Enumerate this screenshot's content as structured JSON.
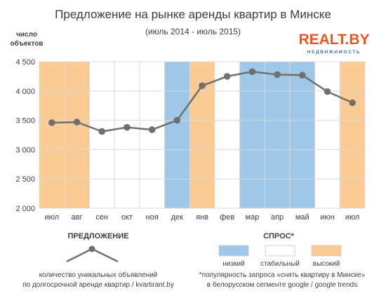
{
  "chart_data": {
    "type": "line",
    "title": "Предложение на рынке аренды квартир в Минске",
    "subtitle": "(июль 2014 - июль 2015)",
    "ylabel": "число объектов",
    "xlabel": "",
    "categories": [
      "июл",
      "авг",
      "сен",
      "окт",
      "ноя",
      "дек",
      "янв",
      "фев",
      "мар",
      "апр",
      "май",
      "июн",
      "июл"
    ],
    "ylim": [
      2000,
      4500
    ],
    "yticks": [
      2000,
      2500,
      3000,
      3500,
      4000,
      4500
    ],
    "ytick_labels": [
      "2 000",
      "2 500",
      "3 000",
      "3 500",
      "4 000",
      "4 500"
    ],
    "grid": true,
    "series": [
      {
        "name": "ПРЕДЛОЖЕНИЕ",
        "color": "#707070",
        "values": [
          3460,
          3470,
          3310,
          3380,
          3340,
          3500,
          4090,
          4250,
          4330,
          4280,
          4270,
          3990,
          3800
        ]
      }
    ],
    "demand_bands": [
      "high",
      "high",
      "low_demand_none",
      "none",
      "none",
      "low",
      "high",
      "none",
      "low",
      "low",
      "low",
      "none",
      "high"
    ],
    "band_colors": {
      "low": "#9ec7e8",
      "medium": "#ffffff",
      "high": "#fbcb95"
    },
    "legend": {
      "supply": {
        "heading": "ПРЕДЛОЖЕНИЕ",
        "note_line1": "количество уникальных объявлений",
        "note_line2": "по долгосрочной аренде квартир / kvartirant.by"
      },
      "demand": {
        "heading": "СПРОС*",
        "items": [
          {
            "key": "low",
            "label": "низкий"
          },
          {
            "key": "medium",
            "label": "стабильный"
          },
          {
            "key": "high",
            "label": "высокий"
          }
        ],
        "note_line1": "*популярность запроса «снять квартиру в Минске»",
        "note_line2": "в белорусском сегменте google / google trends"
      }
    }
  },
  "logo": {
    "text": "REALT.BY",
    "tagline": "НЕДВИЖИМОСТЬ",
    "color": "#e8562a",
    "tagline_color": "#3f6fb5"
  },
  "colors": {
    "grid": "#d9d9d9",
    "text": "#3d3d3d",
    "line": "#707070"
  }
}
